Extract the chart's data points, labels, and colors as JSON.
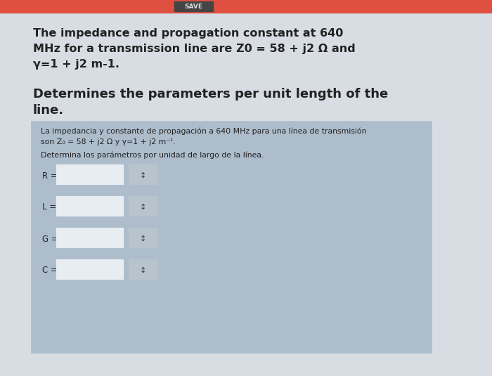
{
  "bg_color": "#c8cdd4",
  "top_bar_bg": "#e05040",
  "top_bar_text_bg": "#444444",
  "top_bar_text": "SAVE",
  "main_bg": "#d8dde4",
  "title_line1": "The impedance and propagation constant at 640",
  "title_line2": "MHz for a transmission line are Z0 = 58 + j2 Ω and",
  "title_line3": "γ=1 + j2 m-1.",
  "subtitle_line1": "Determines the parameters per unit length of the",
  "subtitle_line2": "line.",
  "box_bg": "#adbdcc",
  "spanish_line1": "La impedancia y constante de propagación a 640 MHz para una línea de transmisión",
  "spanish_line2": "son Z₀ = 58 + j2 Ω y γ=1 + j2 m⁻¹.",
  "spanish_line3": "Determina los parámetros por unidad de largo de la línea.",
  "param_labels": [
    "R =",
    "L =",
    "G =",
    "C ="
  ],
  "input_box_color": "#e8edf2",
  "input_box_border": "#999999",
  "dropdown_color": "#b8c4cc",
  "dropdown_border": "#999999",
  "text_color": "#222222",
  "title_fontsize": 11.5,
  "subtitle_fontsize": 13.0,
  "spanish_fontsize": 7.8,
  "param_fontsize": 8.5
}
